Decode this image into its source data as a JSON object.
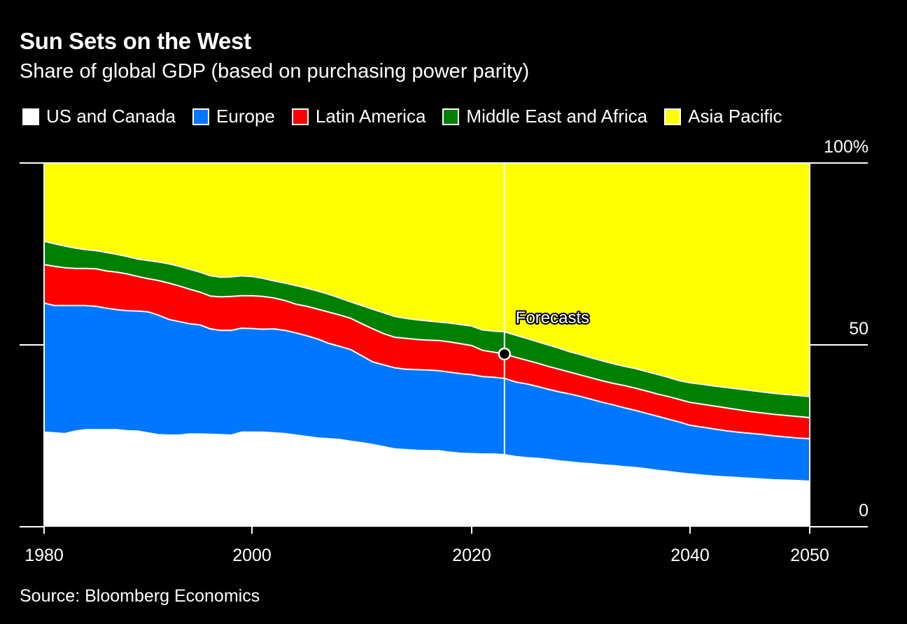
{
  "chart_data": {
    "type": "area",
    "stacked": true,
    "title": "Sun Sets on the West",
    "subtitle": "Share of global GDP (based on purchasing power parity)",
    "xlabel": "",
    "ylabel": "",
    "source": "Source: Bloomberg Economics",
    "xlim": [
      1980,
      2050
    ],
    "ylim": [
      0,
      100
    ],
    "x_ticks": [
      1980,
      2000,
      2020,
      2040,
      2050
    ],
    "x_tick_labels": [
      "1980",
      "2000",
      "2020",
      "2040",
      "2050"
    ],
    "y_ticks": [
      0,
      50,
      100
    ],
    "y_tick_labels": [
      "0",
      "50",
      "100%"
    ],
    "y_axis_side": "right",
    "grid": true,
    "legend_position": "top-left",
    "annotation": {
      "label": "Forecasts",
      "x": 2023,
      "marker_y": 47.5
    },
    "x": [
      1980,
      1981,
      1982,
      1983,
      1984,
      1985,
      1986,
      1987,
      1988,
      1989,
      1990,
      1991,
      1992,
      1993,
      1994,
      1995,
      1996,
      1997,
      1998,
      1999,
      2000,
      2001,
      2002,
      2003,
      2004,
      2005,
      2006,
      2007,
      2008,
      2009,
      2010,
      2011,
      2012,
      2013,
      2014,
      2015,
      2016,
      2017,
      2018,
      2019,
      2020,
      2021,
      2022,
      2023,
      2024,
      2025,
      2026,
      2027,
      2028,
      2029,
      2030,
      2031,
      2032,
      2033,
      2034,
      2035,
      2036,
      2037,
      2038,
      2039,
      2040,
      2041,
      2042,
      2043,
      2044,
      2045,
      2046,
      2047,
      2048,
      2049,
      2050
    ],
    "series": [
      {
        "name": "US and Canada",
        "color": "#ffffff",
        "values": [
          26.0,
          25.8,
          25.6,
          26.3,
          26.7,
          26.7,
          26.7,
          26.7,
          26.4,
          26.3,
          25.8,
          25.3,
          25.2,
          25.2,
          25.5,
          25.5,
          25.4,
          25.3,
          25.2,
          26.0,
          26.0,
          26.0,
          25.8,
          25.6,
          25.2,
          24.8,
          24.4,
          24.2,
          24.0,
          23.5,
          23.1,
          22.6,
          22.0,
          21.4,
          21.2,
          21.0,
          20.9,
          20.9,
          20.5,
          20.2,
          20.1,
          20.0,
          20.0,
          19.8,
          19.3,
          19.0,
          18.8,
          18.5,
          18.1,
          17.8,
          17.5,
          17.3,
          17.0,
          16.8,
          16.5,
          16.3,
          15.9,
          15.5,
          15.2,
          14.8,
          14.5,
          14.2,
          13.9,
          13.7,
          13.5,
          13.3,
          13.1,
          12.9,
          12.8,
          12.7,
          12.5
        ]
      },
      {
        "name": "Europe",
        "color": "#0077ff",
        "values": [
          35.5,
          35.0,
          35.2,
          34.5,
          34.1,
          33.9,
          33.4,
          33.0,
          33.0,
          33.0,
          33.3,
          32.9,
          31.8,
          31.2,
          30.3,
          30.0,
          29.0,
          28.7,
          28.8,
          28.6,
          28.5,
          28.3,
          28.6,
          28.4,
          28.1,
          27.7,
          27.2,
          26.2,
          25.6,
          25.2,
          23.9,
          22.7,
          22.5,
          22.3,
          22.1,
          22.2,
          22.2,
          22.0,
          22.0,
          21.9,
          21.7,
          21.3,
          21.1,
          21.0,
          20.5,
          20.3,
          19.8,
          19.3,
          19.0,
          18.7,
          18.3,
          17.7,
          17.2,
          16.7,
          16.2,
          15.7,
          15.3,
          14.9,
          14.4,
          14.0,
          13.4,
          13.2,
          13.0,
          12.7,
          12.5,
          12.4,
          12.3,
          12.1,
          11.9,
          11.7,
          11.7
        ]
      },
      {
        "name": "Latin America",
        "color": "#ff0000",
        "values": [
          10.6,
          10.8,
          10.4,
          10.2,
          10.2,
          10.3,
          10.2,
          10.3,
          10.1,
          9.5,
          9.1,
          9.5,
          10.0,
          9.8,
          9.5,
          9.0,
          9.0,
          9.2,
          9.3,
          8.9,
          9.0,
          9.0,
          8.5,
          8.2,
          7.9,
          8.1,
          8.2,
          8.6,
          8.6,
          8.6,
          8.8,
          9.1,
          8.6,
          8.4,
          8.5,
          8.3,
          8.2,
          8.3,
          8.3,
          8.2,
          8.0,
          7.2,
          6.9,
          6.7,
          6.8,
          6.5,
          6.4,
          6.3,
          6.2,
          6.0,
          5.9,
          5.9,
          5.9,
          5.9,
          6.1,
          6.1,
          6.1,
          6.1,
          6.2,
          6.2,
          6.3,
          6.3,
          6.3,
          6.3,
          6.2,
          6.0,
          5.9,
          5.9,
          5.9,
          5.9,
          5.8
        ]
      },
      {
        "name": "Middle East and Africa",
        "color": "#008000",
        "values": [
          6.4,
          6.2,
          6.0,
          5.6,
          5.2,
          5.0,
          5.1,
          4.9,
          4.8,
          4.8,
          5.0,
          5.1,
          5.3,
          5.4,
          5.5,
          5.5,
          5.6,
          5.4,
          5.4,
          5.5,
          5.3,
          5.0,
          4.7,
          4.8,
          5.1,
          5.0,
          5.0,
          4.9,
          4.7,
          4.5,
          5.0,
          5.4,
          5.7,
          5.7,
          5.5,
          5.4,
          5.3,
          5.1,
          5.2,
          5.3,
          5.4,
          5.6,
          5.8,
          6.1,
          6.1,
          6.0,
          5.9,
          5.9,
          5.8,
          5.6,
          5.6,
          5.5,
          5.5,
          5.4,
          5.3,
          5.4,
          5.4,
          5.4,
          5.3,
          5.2,
          5.4,
          5.5,
          5.5,
          5.6,
          5.7,
          5.8,
          5.8,
          5.8,
          5.8,
          5.8,
          5.8
        ]
      },
      {
        "name": "Asia Pacific",
        "color": "#ffff00",
        "values": [
          21.5,
          22.2,
          22.8,
          23.4,
          23.8,
          24.1,
          24.6,
          25.1,
          25.7,
          26.4,
          26.8,
          27.2,
          27.7,
          28.4,
          29.2,
          30.0,
          31.0,
          31.4,
          31.3,
          31.0,
          31.2,
          31.7,
          32.4,
          33.0,
          33.7,
          34.4,
          35.2,
          36.1,
          37.1,
          38.2,
          39.2,
          40.2,
          41.2,
          42.2,
          42.7,
          43.1,
          43.4,
          43.7,
          44.0,
          44.4,
          44.8,
          45.9,
          46.2,
          46.4,
          47.3,
          48.2,
          49.1,
          50.0,
          50.9,
          51.9,
          52.7,
          53.6,
          54.4,
          55.2,
          55.9,
          56.5,
          57.3,
          58.1,
          58.9,
          59.8,
          60.4,
          60.8,
          61.3,
          61.7,
          62.1,
          62.5,
          62.9,
          63.3,
          63.6,
          63.9,
          64.2
        ]
      }
    ]
  }
}
